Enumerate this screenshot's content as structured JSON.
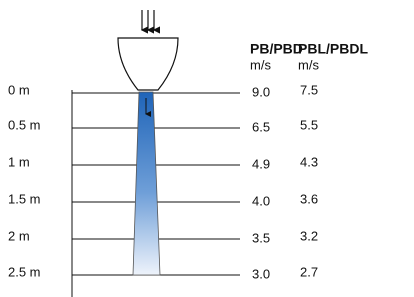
{
  "columns": {
    "headers": [
      "PB/PBD",
      "PBL/PBDL"
    ],
    "units": [
      "m/s",
      "m/s"
    ]
  },
  "rows": [
    {
      "distance": "0 m",
      "pb": "9.0",
      "pbl": "7.5"
    },
    {
      "distance": "0.5 m",
      "pb": "6.5",
      "pbl": "5.5"
    },
    {
      "distance": "1 m",
      "pb": "4.9",
      "pbl": "4.3"
    },
    {
      "distance": "1.5 m",
      "pb": "4.0",
      "pbl": "3.6"
    },
    {
      "distance": "2 m",
      "pb": "3.5",
      "pbl": "3.2"
    },
    {
      "distance": "2.5 m",
      "pb": "3.0",
      "pbl": "2.7"
    }
  ]
}
